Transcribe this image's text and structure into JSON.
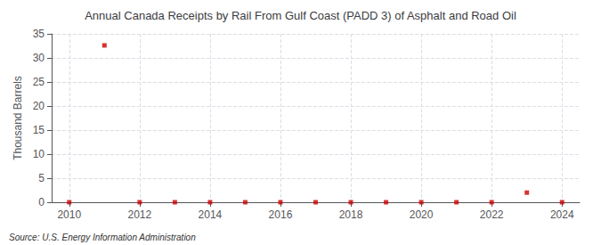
{
  "chart_data": {
    "type": "scatter",
    "title": "Annual Canada Receipts by Rail From Gulf Coast (PADD 3) of Asphalt and Road Oil",
    "ylabel": "Thousand Barrels",
    "annotations": [
      "Source: U.S. Energy Information Administration"
    ],
    "x": [
      2010,
      2011,
      2012,
      2013,
      2014,
      2015,
      2016,
      2017,
      2018,
      2019,
      2020,
      2021,
      2022,
      2023,
      2024
    ],
    "values": [
      0.0,
      32.6,
      0.0,
      0.0,
      0.0,
      0.0,
      0.0,
      0.0,
      0.0,
      0.0,
      0.0,
      0.0,
      0.0,
      2.0,
      0.0
    ],
    "color": "#cc0000",
    "marker": "square",
    "xlim": [
      2009.5,
      2024.5
    ],
    "xticks": [
      2010,
      2012,
      2014,
      2016,
      2018,
      2020,
      2022,
      2024
    ],
    "ylim": [
      0,
      35
    ],
    "yticks": [
      0,
      5,
      10,
      15,
      20,
      25,
      30,
      35
    ],
    "grid": true
  }
}
